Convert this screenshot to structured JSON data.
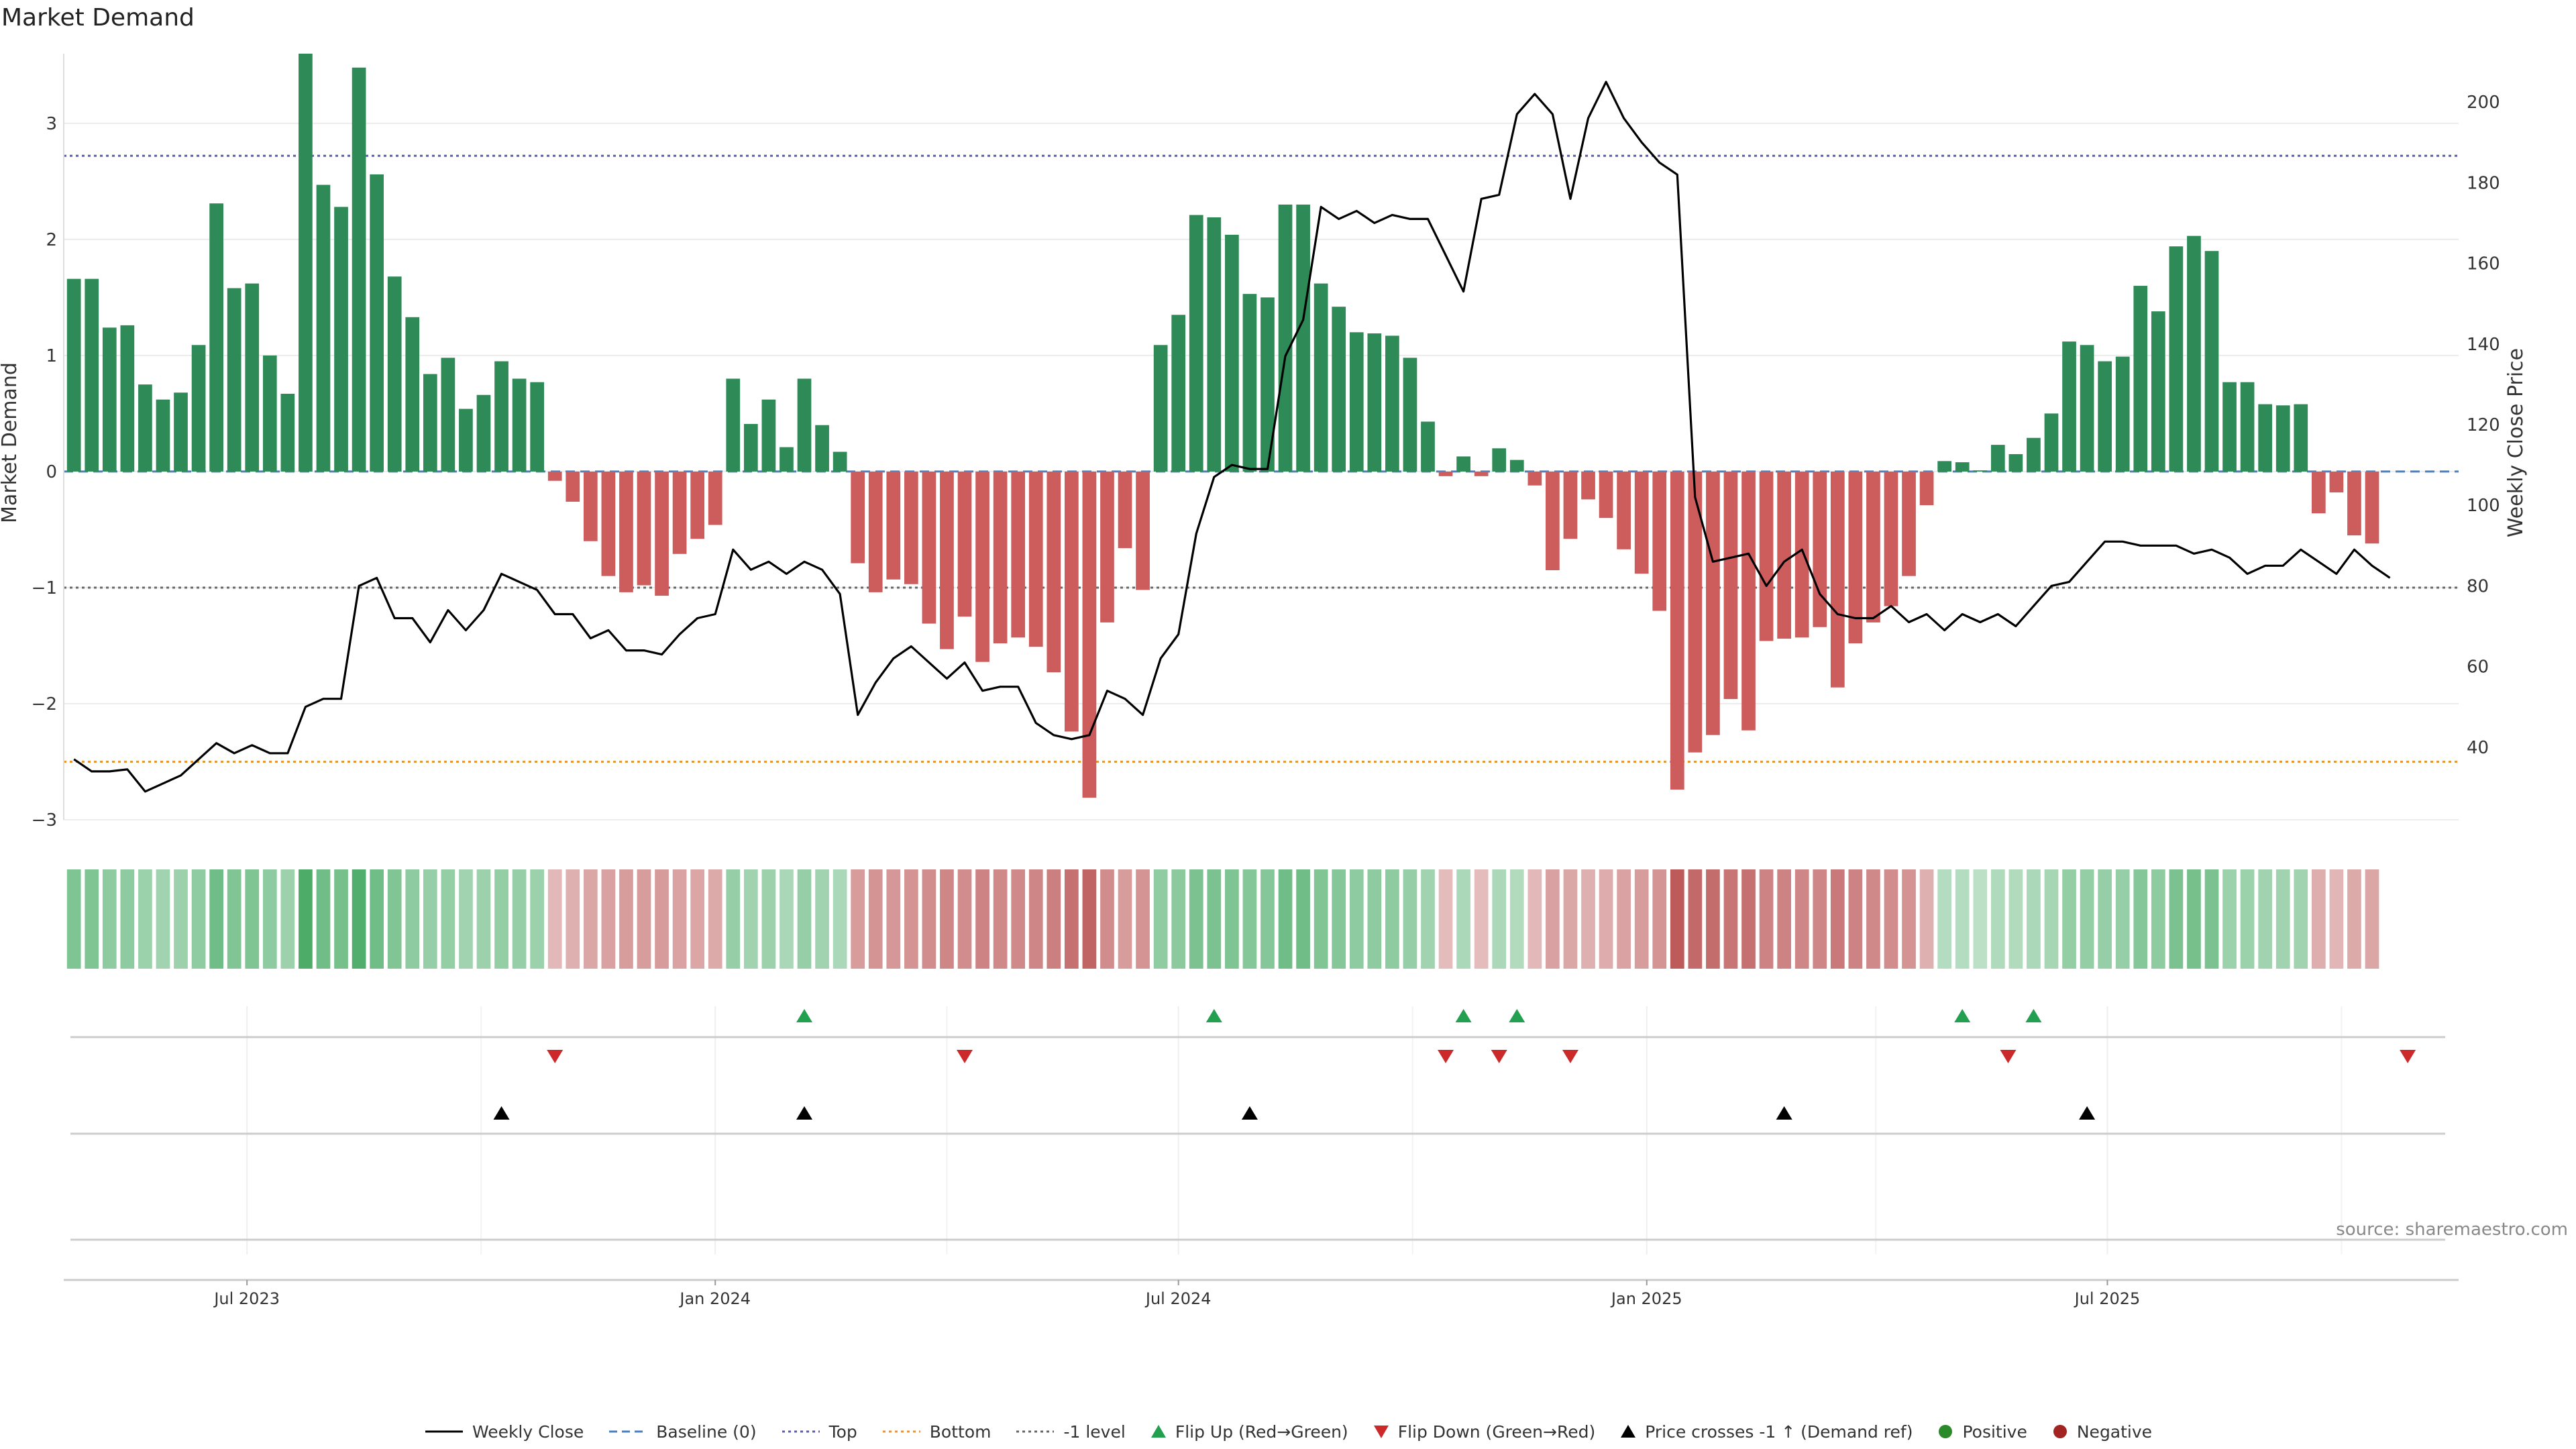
{
  "title": "Market Demand",
  "source": "source: sharemaestro.com",
  "colors": {
    "positive": "#2e8b57",
    "negative": "#cd5c5c",
    "price": "#000000",
    "top_line": "#5b5bb0",
    "bottom_line": "#e8962e",
    "minus1_line": "#666666",
    "flip_up": "#22a050",
    "flip_down": "#cc2a2a",
    "cross": "#000000",
    "baseline": "#4a7fc0"
  },
  "chart_data": {
    "type": "bar",
    "title": "Market Demand",
    "ylabel": "Market Demand",
    "y2label": "Weekly Close Price",
    "ylim": [
      -3.0,
      3.6
    ],
    "y2lim": [
      22,
      212
    ],
    "yticks": [
      -3,
      -2,
      -1,
      0,
      1,
      2,
      3
    ],
    "yticks_labels": [
      "−3",
      "−2",
      "−1",
      "0",
      "1",
      "2",
      "3"
    ],
    "y2ticks": [
      40,
      60,
      80,
      100,
      120,
      140,
      160,
      180,
      200
    ],
    "x_start": "2023-04-24",
    "x_range": [
      "2023-04-20",
      "2025-11-16"
    ],
    "x_ticks": [
      {
        "date": "2023-07-01",
        "label": "Jul 2023"
      },
      {
        "date": "2024-01-01",
        "label": "Jan 2024"
      },
      {
        "date": "2024-07-01",
        "label": "Jul 2024"
      },
      {
        "date": "2025-01-01",
        "label": "Jan 2025"
      },
      {
        "date": "2025-07-01",
        "label": "Jul 2025"
      }
    ],
    "reference_lines": {
      "top": 2.72,
      "bottom": -2.5,
      "minus1": -1.0,
      "baseline": 0
    },
    "demand": [
      1.66,
      1.66,
      1.24,
      1.26,
      0.75,
      0.62,
      0.68,
      1.09,
      2.31,
      1.58,
      1.62,
      1.0,
      0.67,
      3.6,
      2.47,
      2.28,
      3.48,
      2.56,
      1.68,
      1.33,
      0.84,
      0.98,
      0.54,
      0.66,
      0.95,
      0.8,
      0.77,
      -0.08,
      -0.26,
      -0.6,
      -0.9,
      -1.04,
      -0.98,
      -1.07,
      -0.71,
      -0.58,
      -0.46,
      0.8,
      0.41,
      0.62,
      0.21,
      0.8,
      0.4,
      0.17,
      -0.79,
      -1.04,
      -0.93,
      -0.97,
      -1.31,
      -1.53,
      -1.25,
      -1.64,
      -1.48,
      -1.43,
      -1.51,
      -1.73,
      -2.24,
      -2.81,
      -1.3,
      -0.66,
      -1.02,
      1.09,
      1.35,
      2.21,
      2.19,
      2.04,
      1.53,
      1.5,
      2.3,
      2.3,
      1.62,
      1.42,
      1.2,
      1.19,
      1.17,
      0.98,
      0.43,
      -0.04,
      0.13,
      -0.04,
      0.2,
      0.1,
      -0.12,
      -0.85,
      -0.58,
      -0.24,
      -0.4,
      -0.67,
      -0.88,
      -1.2,
      -2.74,
      -2.42,
      -2.27,
      -1.96,
      -2.23,
      -1.46,
      -1.44,
      -1.43,
      -1.34,
      -1.86,
      -1.48,
      -1.3,
      -1.16,
      -0.9,
      -0.29,
      0.09,
      0.08,
      0.01,
      0.23,
      0.15,
      0.29,
      0.5,
      1.12,
      1.09,
      0.95,
      0.99,
      1.6,
      1.38,
      1.94,
      2.03,
      1.9,
      0.77,
      0.77,
      0.58,
      0.57,
      0.58,
      -0.36,
      -0.18,
      -0.55,
      -0.62
    ],
    "price": [
      37,
      34,
      34,
      34.5,
      29,
      31,
      33,
      37,
      41,
      38.5,
      40.5,
      38.5,
      38.5,
      50,
      52,
      52,
      80,
      82,
      72,
      72,
      66,
      74,
      69,
      74,
      83,
      81,
      79,
      73,
      73,
      67,
      69,
      64,
      64,
      63,
      68,
      72,
      73,
      89,
      84,
      86,
      83,
      86,
      84,
      78,
      48,
      56,
      62,
      65,
      61,
      57,
      61,
      54,
      55,
      55,
      46,
      43,
      42,
      43,
      54,
      52,
      48,
      62,
      68,
      93,
      107,
      110,
      109,
      109,
      137,
      146,
      174,
      171,
      173,
      170,
      172,
      171,
      171,
      162,
      153,
      176,
      177,
      197,
      202,
      197,
      176,
      196,
      205,
      196,
      190,
      185,
      182,
      102,
      86,
      87,
      88,
      80,
      86,
      89,
      78,
      73,
      72,
      72,
      75,
      71,
      73,
      69,
      73,
      71,
      73,
      70,
      75,
      80,
      81,
      86,
      91,
      91,
      90,
      90,
      90,
      88,
      89,
      87,
      83,
      85,
      85,
      89,
      86,
      83,
      89,
      85,
      82
    ],
    "heat": [
      0.6,
      0.6,
      0.5,
      0.5,
      0.42,
      0.38,
      0.4,
      0.48,
      0.7,
      0.58,
      0.6,
      0.5,
      0.4,
      0.95,
      0.7,
      0.65,
      0.9,
      0.7,
      0.58,
      0.5,
      0.44,
      0.46,
      0.38,
      0.4,
      0.46,
      0.44,
      0.42,
      0.25,
      0.3,
      0.38,
      0.42,
      0.45,
      0.44,
      0.46,
      0.4,
      0.38,
      0.35,
      0.44,
      0.38,
      0.4,
      0.32,
      0.44,
      0.38,
      0.3,
      0.45,
      0.5,
      0.48,
      0.5,
      0.55,
      0.6,
      0.55,
      0.62,
      0.58,
      0.58,
      0.6,
      0.65,
      0.75,
      0.85,
      0.55,
      0.45,
      0.5,
      0.48,
      0.52,
      0.62,
      0.62,
      0.6,
      0.55,
      0.55,
      0.7,
      0.7,
      0.58,
      0.55,
      0.5,
      0.5,
      0.5,
      0.45,
      0.38,
      0.22,
      0.3,
      0.22,
      0.3,
      0.26,
      0.25,
      0.42,
      0.38,
      0.3,
      0.34,
      0.4,
      0.45,
      0.5,
      0.9,
      0.8,
      0.78,
      0.72,
      0.75,
      0.62,
      0.62,
      0.6,
      0.6,
      0.7,
      0.62,
      0.58,
      0.55,
      0.5,
      0.3,
      0.25,
      0.25,
      0.2,
      0.28,
      0.26,
      0.3,
      0.34,
      0.46,
      0.46,
      0.44,
      0.45,
      0.55,
      0.5,
      0.62,
      0.65,
      0.62,
      0.42,
      0.42,
      0.38,
      0.38,
      0.38,
      0.32,
      0.26,
      0.35,
      0.38
    ],
    "flip_up_dates": [
      "2024-02-05",
      "2024-07-15",
      "2024-10-21",
      "2024-11-11",
      "2025-05-05",
      "2025-06-02"
    ],
    "flip_down_dates": [
      "2023-10-30",
      "2024-04-08",
      "2024-10-14",
      "2024-11-04",
      "2024-12-02",
      "2025-05-23",
      "2025-10-27"
    ],
    "price_cross_dates": [
      "2023-10-09",
      "2024-02-05",
      "2024-07-29",
      "2025-02-24",
      "2025-06-23"
    ],
    "legend": [
      {
        "label": "Weekly Close",
        "symbol": "line-solid"
      },
      {
        "label": "Baseline (0)",
        "symbol": "line-dash"
      },
      {
        "label": "Top",
        "symbol": "line-dot"
      },
      {
        "label": "Bottom",
        "symbol": "line-dot"
      },
      {
        "label": "-1 level",
        "symbol": "line-dot"
      },
      {
        "label": "Flip Up (Red→Green)",
        "symbol": "triangle-up"
      },
      {
        "label": "Flip Down (Green→Red)",
        "symbol": "triangle-down"
      },
      {
        "label": "Price crosses -1 ↑ (Demand ref)",
        "symbol": "triangle-up"
      },
      {
        "label": "Positive",
        "symbol": "dot"
      },
      {
        "label": "Negative",
        "symbol": "dot"
      }
    ]
  }
}
